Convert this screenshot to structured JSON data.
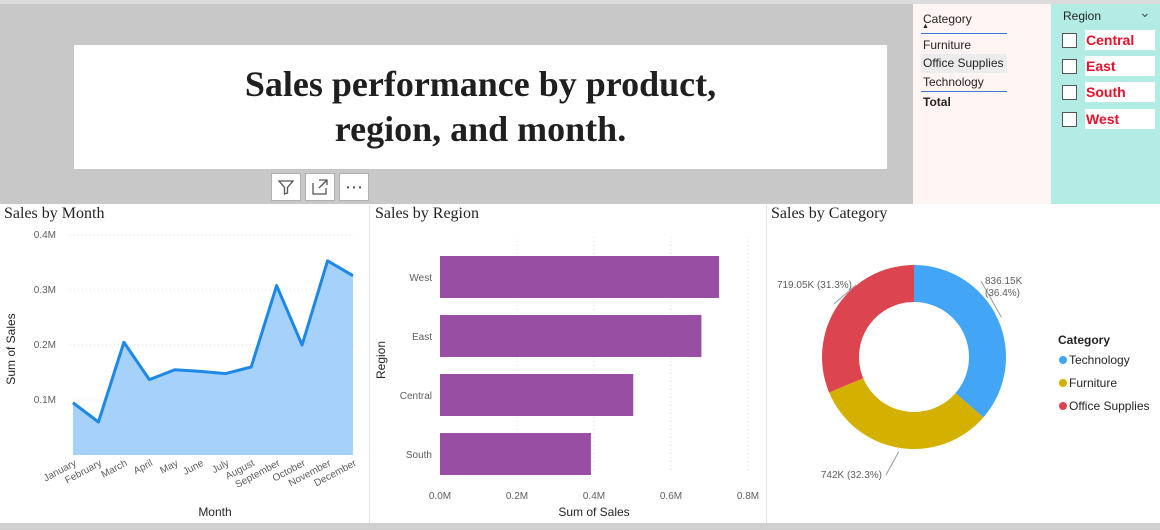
{
  "report": {
    "title": "Sales performance by product, region, and month."
  },
  "toolbar": {
    "filter_icon": "filter-icon",
    "focus_icon": "focus-mode-icon",
    "more_icon": "more-options-icon",
    "more_label": "⋯"
  },
  "category_table": {
    "header": "Category",
    "sort_indicator": "▲",
    "rows": [
      "Furniture",
      "Office Supplies",
      "Technology"
    ],
    "total_label": "Total"
  },
  "region_slicer": {
    "title": "Region",
    "chevron": "⌄",
    "items": [
      "Central",
      "East",
      "South",
      "West"
    ],
    "label_color": "#e8102a"
  },
  "charts": {
    "month_title": "Sales by Month",
    "region_title": "Sales by Region",
    "category_title": "Sales by Category"
  },
  "chart_data": [
    {
      "type": "area",
      "title": "Sales by Month",
      "xlabel": "Month",
      "ylabel": "Sum of Sales",
      "yticks": [
        "0.1M",
        "0.2M",
        "0.3M",
        "0.4M"
      ],
      "ytick_values": [
        100000,
        200000,
        300000,
        400000
      ],
      "ylim": [
        0,
        420000
      ],
      "categories": [
        "January",
        "February",
        "March",
        "April",
        "May",
        "June",
        "July",
        "August",
        "September",
        "October",
        "November",
        "December"
      ],
      "values": [
        95000,
        60000,
        205000,
        137000,
        155000,
        152000,
        148000,
        160000,
        308000,
        200000,
        353000,
        326000
      ],
      "line_color": "#1e88e5",
      "fill_color": "#a6d1fb"
    },
    {
      "type": "bar",
      "orientation": "horizontal",
      "title": "Sales by Region",
      "xlabel": "Sum of Sales",
      "ylabel": "Region",
      "xticks": [
        "0.0M",
        "0.2M",
        "0.4M",
        "0.6M",
        "0.8M"
      ],
      "xtick_values": [
        0,
        200000,
        400000,
        600000,
        800000
      ],
      "xlim": [
        0,
        800000
      ],
      "categories": [
        "West",
        "East",
        "Central",
        "South"
      ],
      "values": [
        725000,
        679000,
        502000,
        392000
      ],
      "color": "#984ea3"
    },
    {
      "type": "pie",
      "variant": "donut",
      "title": "Sales by Category",
      "legend_title": "Category",
      "legend_position": "right",
      "slices": [
        {
          "name": "Technology",
          "value": 836150,
          "label": "836.15K\n(36.4%)",
          "color": "#42a5f5"
        },
        {
          "name": "Furniture",
          "value": 742000,
          "label": "742K (32.3%)",
          "color": "#d4b000"
        },
        {
          "name": "Office Supplies",
          "value": 719050,
          "label": "719.05K (31.3%)",
          "color": "#dc4450"
        }
      ]
    }
  ]
}
